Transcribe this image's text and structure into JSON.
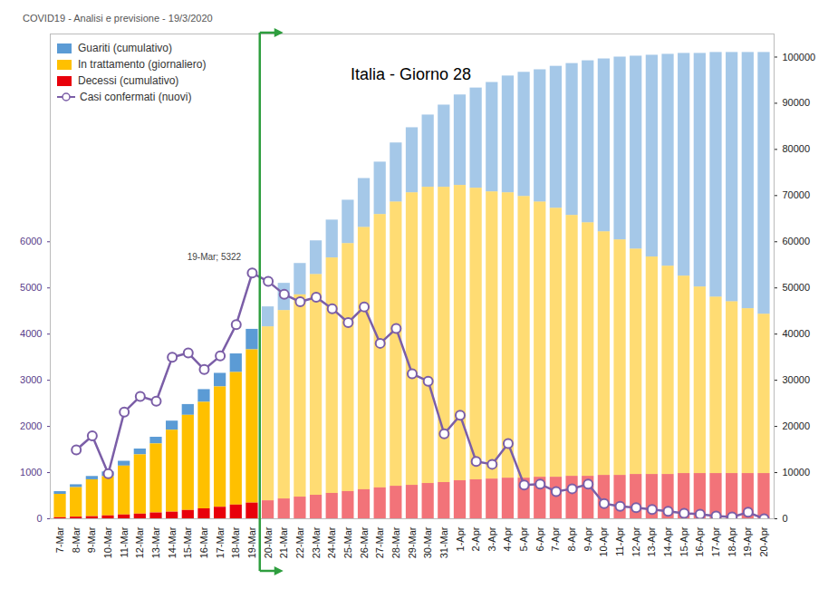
{
  "chart_data": {
    "type": "bar",
    "title": "Italia - Giorno 28",
    "subtitle": "COVID19 - Analisi e previsione - 19/3/2020",
    "categories": [
      "7-Mar",
      "8-Mar",
      "9-Mar",
      "10-Mar",
      "11-Mar",
      "12-Mar",
      "13-Mar",
      "14-Mar",
      "15-Mar",
      "16-Mar",
      "17-Mar",
      "18-Mar",
      "19-Mar",
      "20-Mar",
      "21-Mar",
      "22-Mar",
      "23-Mar",
      "24-Mar",
      "25-Mar",
      "26-Mar",
      "27-Mar",
      "28-Mar",
      "29-Mar",
      "30-Mar",
      "31-Mar",
      "1-Apr",
      "2-Apr",
      "3-Apr",
      "4-Apr",
      "5-Apr",
      "6-Apr",
      "7-Apr",
      "8-Apr",
      "9-Apr",
      "10-Apr",
      "11-Apr",
      "12-Apr",
      "13-Apr",
      "14-Apr",
      "15-Apr",
      "16-Apr",
      "17-Apr",
      "18-Apr",
      "19-Apr",
      "20-Apr"
    ],
    "series": [
      {
        "name": "Guariti (cumulativo)",
        "color": "#5b9bd5",
        "axis": "y2",
        "values": [
          589,
          622,
          724,
          1004,
          1045,
          1258,
          1439,
          1966,
          2335,
          2749,
          2941,
          4025,
          4440,
          4330,
          5900,
          6800,
          7300,
          8200,
          9400,
          10600,
          11350,
          12800,
          14100,
          15650,
          17800,
          19600,
          21700,
          23700,
          25300,
          26900,
          28650,
          30750,
          32900,
          35100,
          37450,
          39600,
          41800,
          43700,
          45900,
          48250,
          50600,
          53000,
          54000,
          55500,
          56700
        ]
      },
      {
        "name": "In trattamento (giornaliero)",
        "color": "#ffc000",
        "axis": "y2",
        "values": [
          5061,
          6387,
          7985,
          8514,
          10590,
          12839,
          14955,
          17750,
          20603,
          23073,
          26062,
          28710,
          33190,
          37670,
          40800,
          43800,
          47800,
          51000,
          53700,
          56800,
          59200,
          61550,
          63350,
          64150,
          63950,
          63950,
          63150,
          62200,
          61800,
          61000,
          59600,
          58250,
          56500,
          54900,
          52750,
          51000,
          48800,
          47100,
          45100,
          42750,
          40400,
          38200,
          37200,
          35700,
          34500
        ]
      },
      {
        "name": "Decessi (cumulativo)",
        "color": "#e8000b",
        "axis": "y2",
        "values": [
          233,
          366,
          463,
          631,
          827,
          1016,
          1266,
          1441,
          1809,
          2158,
          2503,
          2978,
          3405,
          3900,
          4300,
          4700,
          5100,
          5500,
          5900,
          6300,
          6700,
          7050,
          7250,
          7650,
          7850,
          8250,
          8450,
          8600,
          8800,
          8800,
          9000,
          9000,
          9200,
          9200,
          9400,
          9400,
          9600,
          9600,
          9600,
          9800,
          9800,
          9800,
          9800,
          9800,
          9800
        ]
      },
      {
        "name": "Casi confermati (nuovi)",
        "color": "#7b5ea7",
        "type": "line",
        "marker": "circle",
        "values": [
          null,
          1492,
          1797,
          977,
          2313,
          2651,
          2547,
          3497,
          3590,
          3233,
          3526,
          4207,
          5322,
          5140,
          4860,
          4700,
          4800,
          4550,
          4250,
          4590,
          3800,
          4120,
          3140,
          2980,
          1840,
          2240,
          1240,
          1180,
          1630,
          730,
          750,
          590,
          650,
          750,
          330,
          270,
          240,
          200,
          160,
          120,
          100,
          60,
          40,
          140,
          0
        ]
      }
    ],
    "stacked": true,
    "ylim": [
      0,
      10500
    ],
    "yticks": [
      0,
      1000,
      2000,
      3000,
      4000,
      5000,
      6000
    ],
    "y2lim": [
      0,
      105000
    ],
    "y2ticks": [
      0,
      10000,
      20000,
      30000,
      40000,
      50000,
      60000,
      70000,
      80000,
      90000,
      100000
    ],
    "grid": false,
    "legend": "upper left",
    "annotations": [
      {
        "x": "19-Mar",
        "y": 5322,
        "text": "19-Mar; 5322"
      }
    ]
  }
}
